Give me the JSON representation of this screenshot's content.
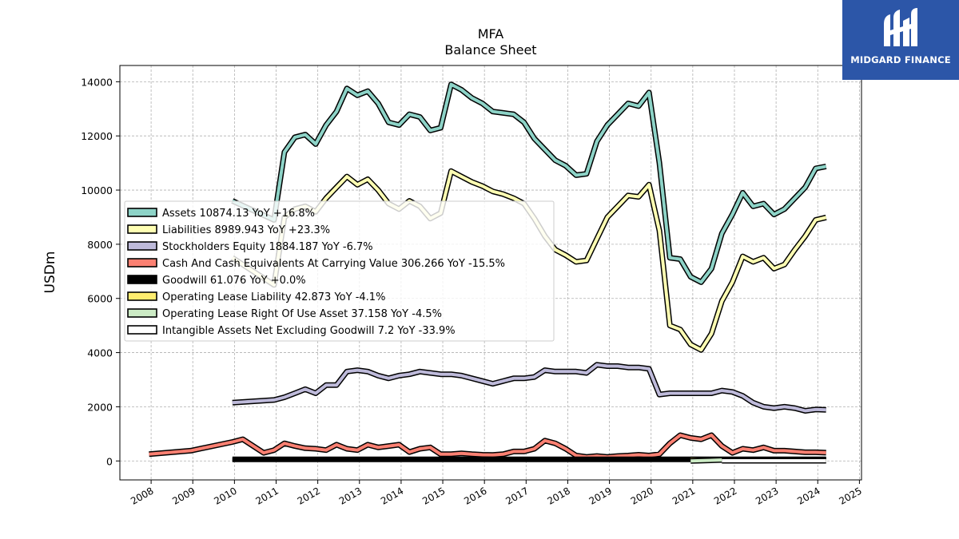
{
  "logo": {
    "text": "MIDGARD FINANCE"
  },
  "chart_data": {
    "type": "line",
    "title": "MFA",
    "subtitle": "Balance  Sheet",
    "ylabel": "USDm",
    "xlim": [
      2007.25,
      2025.05
    ],
    "ylim": [
      -700,
      14600
    ],
    "yticks": [
      0,
      2000,
      4000,
      6000,
      8000,
      10000,
      12000,
      14000
    ],
    "xticks": [
      "2008",
      "2009",
      "2010",
      "2011",
      "2012",
      "2013",
      "2014",
      "2015",
      "2016",
      "2017",
      "2018",
      "2019",
      "2020",
      "2021",
      "2022",
      "2023",
      "2024",
      "2025"
    ],
    "grid": true,
    "legend_position": "center-left",
    "series": [
      {
        "name": "Assets",
        "legend": "Assets  10874.13 YoY +16.8%",
        "color": "#8dd3c7",
        "x": [
          2009.95,
          2010.95,
          2011.2,
          2011.45,
          2011.7,
          2011.95,
          2012.2,
          2012.45,
          2012.7,
          2012.95,
          2013.2,
          2013.45,
          2013.7,
          2013.95,
          2014.2,
          2014.45,
          2014.7,
          2014.95,
          2015.2,
          2015.45,
          2015.7,
          2015.95,
          2016.2,
          2016.45,
          2016.7,
          2016.95,
          2017.2,
          2017.45,
          2017.7,
          2017.95,
          2018.2,
          2018.45,
          2018.7,
          2018.95,
          2019.2,
          2019.45,
          2019.7,
          2019.95,
          2020.2,
          2020.45,
          2020.7,
          2020.95,
          2021.2,
          2021.45,
          2021.7,
          2021.95,
          2022.2,
          2022.45,
          2022.7,
          2022.95,
          2023.2,
          2023.45,
          2023.7,
          2023.95,
          2024.2
        ],
        "values": [
          9600,
          8900,
          11400,
          11950,
          12050,
          11700,
          12400,
          12900,
          13750,
          13500,
          13650,
          13200,
          12500,
          12400,
          12800,
          12700,
          12200,
          12300,
          13900,
          13700,
          13400,
          13200,
          12900,
          12850,
          12800,
          12500,
          11900,
          11500,
          11100,
          10900,
          10550,
          10600,
          11800,
          12400,
          12800,
          13200,
          13100,
          13600,
          11000,
          7500,
          7450,
          6800,
          6600,
          7100,
          8400,
          9100,
          9900,
          9400,
          9500,
          9100,
          9300,
          9700,
          10100,
          10800,
          10874
        ]
      },
      {
        "name": "Liabilities",
        "legend": "Liabilities  8989.943 YoY +23.3%",
        "color": "#ffffb3",
        "x": [
          2009.95,
          2010.95,
          2011.2,
          2011.45,
          2011.7,
          2011.95,
          2012.2,
          2012.45,
          2012.7,
          2012.95,
          2013.2,
          2013.45,
          2013.7,
          2013.95,
          2014.2,
          2014.45,
          2014.7,
          2014.95,
          2015.2,
          2015.45,
          2015.7,
          2015.95,
          2016.2,
          2016.45,
          2016.7,
          2016.95,
          2017.2,
          2017.45,
          2017.7,
          2017.95,
          2018.2,
          2018.45,
          2018.7,
          2018.95,
          2019.2,
          2019.45,
          2019.7,
          2019.95,
          2020.2,
          2020.45,
          2020.7,
          2020.95,
          2021.2,
          2021.45,
          2021.7,
          2021.95,
          2022.2,
          2022.45,
          2022.7,
          2022.95,
          2023.2,
          2023.45,
          2023.7,
          2023.95,
          2024.2
        ],
        "values": [
          7500,
          6500,
          9000,
          9300,
          9400,
          9200,
          9700,
          10100,
          10500,
          10200,
          10400,
          10000,
          9500,
          9300,
          9600,
          9400,
          8950,
          9150,
          10700,
          10500,
          10300,
          10150,
          9950,
          9850,
          9700,
          9500,
          8950,
          8300,
          7800,
          7600,
          7350,
          7400,
          8200,
          9000,
          9400,
          9800,
          9750,
          10200,
          8500,
          5000,
          4850,
          4300,
          4100,
          4700,
          5900,
          6600,
          7550,
          7350,
          7500,
          7100,
          7250,
          7800,
          8300,
          8900,
          8990
        ]
      },
      {
        "name": "Stockholders Equity",
        "legend": "Stockholders Equity  1884.187 YoY -6.7%",
        "color": "#bebada",
        "x": [
          2009.95,
          2010.95,
          2011.2,
          2011.45,
          2011.7,
          2011.95,
          2012.2,
          2012.45,
          2012.7,
          2012.95,
          2013.2,
          2013.45,
          2013.7,
          2013.95,
          2014.2,
          2014.45,
          2014.7,
          2014.95,
          2015.2,
          2015.45,
          2015.7,
          2015.95,
          2016.2,
          2016.45,
          2016.7,
          2016.95,
          2017.2,
          2017.45,
          2017.7,
          2017.95,
          2018.2,
          2018.45,
          2018.7,
          2018.95,
          2019.2,
          2019.45,
          2019.7,
          2019.95,
          2020.2,
          2020.45,
          2020.7,
          2020.95,
          2021.2,
          2021.45,
          2021.7,
          2021.95,
          2022.2,
          2022.45,
          2022.7,
          2022.95,
          2023.2,
          2023.45,
          2023.7,
          2023.95,
          2024.2
        ],
        "values": [
          2150,
          2250,
          2350,
          2500,
          2650,
          2500,
          2800,
          2800,
          3300,
          3350,
          3300,
          3150,
          3050,
          3150,
          3200,
          3300,
          3250,
          3200,
          3200,
          3150,
          3050,
          2950,
          2850,
          2950,
          3050,
          3050,
          3100,
          3350,
          3300,
          3300,
          3300,
          3250,
          3550,
          3500,
          3500,
          3450,
          3450,
          3400,
          2450,
          2500,
          2500,
          2500,
          2500,
          2500,
          2600,
          2550,
          2400,
          2150,
          2000,
          1950,
          2000,
          1950,
          1850,
          1900,
          1884
        ]
      },
      {
        "name": "Cash And Cash Equivalents At Carrying Value",
        "legend": "Cash And Cash Equivalents At Carrying Value  306.266 YoY -15.5%",
        "color": "#fb8072",
        "x": [
          2007.95,
          2008.95,
          2009.95,
          2010.2,
          2010.7,
          2010.95,
          2011.2,
          2011.45,
          2011.7,
          2011.95,
          2012.2,
          2012.45,
          2012.7,
          2012.95,
          2013.2,
          2013.45,
          2013.7,
          2013.95,
          2014.2,
          2014.45,
          2014.7,
          2014.95,
          2015.2,
          2015.45,
          2015.7,
          2015.95,
          2016.2,
          2016.45,
          2016.7,
          2016.95,
          2017.2,
          2017.45,
          2017.7,
          2017.95,
          2018.2,
          2018.45,
          2018.7,
          2018.95,
          2019.2,
          2019.45,
          2019.7,
          2019.95,
          2020.2,
          2020.45,
          2020.7,
          2020.95,
          2021.2,
          2021.45,
          2021.7,
          2021.95,
          2022.2,
          2022.45,
          2022.7,
          2022.95,
          2023.2,
          2023.45,
          2023.7,
          2023.95,
          2024.2
        ],
        "values": [
          250,
          380,
          700,
          800,
          300,
          400,
          650,
          550,
          470,
          450,
          400,
          600,
          450,
          400,
          600,
          500,
          550,
          600,
          330,
          450,
          500,
          250,
          250,
          280,
          250,
          230,
          220,
          250,
          350,
          350,
          450,
          750,
          650,
          450,
          200,
          150,
          180,
          150,
          180,
          200,
          230,
          200,
          250,
          650,
          950,
          850,
          800,
          950,
          550,
          300,
          450,
          400,
          500,
          380,
          380,
          350,
          320,
          320,
          306
        ]
      },
      {
        "name": "Goodwill",
        "legend": "Goodwill  61.076 YoY +0.0%",
        "color": "#000000",
        "x": [
          2009.95,
          2024.2
        ],
        "values": [
          61,
          61
        ]
      },
      {
        "name": "Operating Lease Liability",
        "legend": "Operating Lease Liability  42.873 YoY -4.1%",
        "color": "#ffed6f",
        "x": [
          2020.95,
          2024.2
        ],
        "values": [
          55,
          43
        ]
      },
      {
        "name": "Operating Lease Right Of Use Asset",
        "legend": "Operating Lease Right Of Use Asset  37.158 YoY -4.5%",
        "color": "#ccebc5",
        "x": [
          2020.95,
          2021.7
        ],
        "values": [
          0,
          37
        ]
      },
      {
        "name": "Intangible Assets Net Excluding Goodwill",
        "legend": "Intangible Assets Net Excluding Goodwill  7.2 YoY -33.9%",
        "color": "#ffffff",
        "x": [
          2021.7,
          2024.2
        ],
        "values": [
          7.2,
          7.2
        ]
      }
    ]
  }
}
